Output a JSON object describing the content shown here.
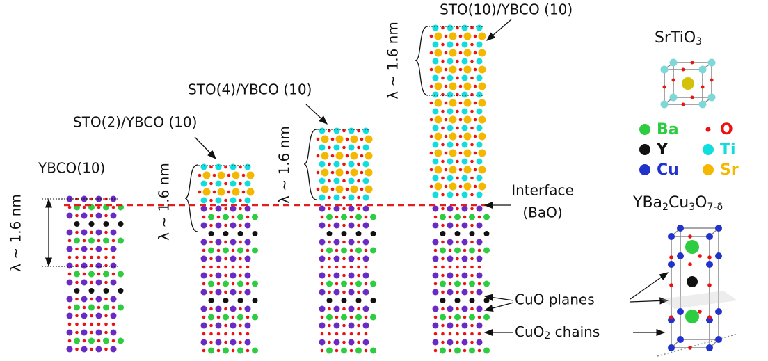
{
  "titles": {
    "ybco": "YBCO(10)",
    "sto2": "STO(2)/YBCO (10)",
    "sto4": "STO(4)/YBCO (10)",
    "sto10": "STO(10)/YBCO (10)"
  },
  "thickness_labels": [
    "λ ~ 1.6 nm",
    "λ ~ 1.6 nm",
    "λ ~ 1.6 nm",
    "λ ~ 1.6 nm"
  ],
  "interface": [
    "Interface",
    "(BaO)"
  ],
  "cuo_planes": "CuO planes",
  "cuo2_chains": [
    "CuO",
    "2",
    " chains"
  ],
  "srtio3": [
    "SrTiO",
    "3"
  ],
  "legend": [
    {
      "label": "Ba",
      "color": "#2ecc40"
    },
    {
      "label": "O",
      "color": "#ee1111"
    },
    {
      "label": "Y",
      "color": "#111111"
    },
    {
      "label": "Ti",
      "color": "#11dddd"
    },
    {
      "label": "Cu",
      "color": "#2233cc"
    },
    {
      "label": "Sr",
      "color": "#f5b800"
    }
  ],
  "ybco_formula": [
    "YBa",
    "2",
    "Cu",
    "3",
    "O",
    "7-δ"
  ]
}
